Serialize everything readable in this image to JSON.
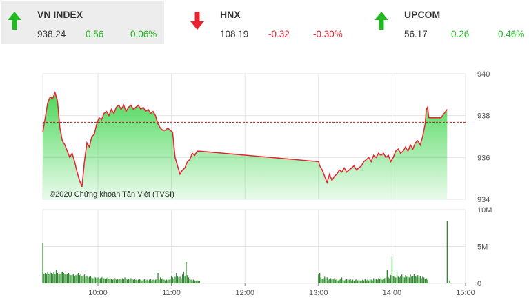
{
  "tickers": [
    {
      "name": "VN INDEX",
      "value": "938.24",
      "change": "0.56",
      "percent": "0.06%",
      "direction": "up",
      "color": "#22b822",
      "active": true
    },
    {
      "name": "HNX",
      "value": "108.19",
      "change": "-0.32",
      "percent": "-0.30%",
      "direction": "down",
      "color": "#e8222e",
      "active": false
    },
    {
      "name": "UPCOM",
      "value": "56.17",
      "change": "0.26",
      "percent": "0.46%",
      "direction": "up",
      "color": "#22b822",
      "active": false
    }
  ],
  "chart_data": {
    "type": "area",
    "copyright": "©2020 Chứng khoán Tân Việt (TVSI)",
    "x_ticks": [
      "10:00",
      "11:00",
      "12:00",
      "13:00",
      "14:00",
      "15:00"
    ],
    "price_ticks": [
      "934",
      "936",
      "938",
      "940"
    ],
    "volume_ticks": [
      "0",
      "5M",
      "10M"
    ],
    "price_range": [
      934,
      940
    ],
    "volume_range": [
      0,
      10
    ],
    "reference_price": 937.68,
    "grid": true,
    "colors": {
      "price_line": "#e8222e",
      "area_fill": "#4cd85a",
      "volume": "#2d8a2d",
      "reference": "#b82020",
      "grid": "#e4e4e4"
    },
    "price_series": [
      [
        "9:15",
        937.2
      ],
      [
        "9:17",
        937.9
      ],
      [
        "9:19",
        938.6
      ],
      [
        "9:21",
        938.9
      ],
      [
        "9:23",
        938.8
      ],
      [
        "9:25",
        939.1
      ],
      [
        "9:27",
        938.7
      ],
      [
        "9:29",
        937.4
      ],
      [
        "9:31",
        936.8
      ],
      [
        "9:33",
        936.6
      ],
      [
        "9:35",
        936.3
      ],
      [
        "9:37",
        936.0
      ],
      [
        "9:39",
        936.2
      ],
      [
        "9:41",
        935.8
      ],
      [
        "9:43",
        935.3
      ],
      [
        "9:45",
        934.9
      ],
      [
        "9:47",
        934.6
      ],
      [
        "9:49",
        935.8
      ],
      [
        "9:51",
        936.7
      ],
      [
        "9:53",
        936.5
      ],
      [
        "9:55",
        937.0
      ],
      [
        "9:57",
        937.1
      ],
      [
        "9:59",
        937.6
      ],
      [
        "10:01",
        937.9
      ],
      [
        "10:03",
        937.8
      ],
      [
        "10:05",
        938.1
      ],
      [
        "10:07",
        938.2
      ],
      [
        "10:09",
        938.0
      ],
      [
        "10:11",
        938.3
      ],
      [
        "10:13",
        938.1
      ],
      [
        "10:15",
        938.4
      ],
      [
        "10:17",
        938.5
      ],
      [
        "10:19",
        938.3
      ],
      [
        "10:21",
        938.5
      ],
      [
        "10:23",
        938.2
      ],
      [
        "10:25",
        938.4
      ],
      [
        "10:27",
        938.5
      ],
      [
        "10:29",
        938.3
      ],
      [
        "10:31",
        938.4
      ],
      [
        "10:33",
        938.5
      ],
      [
        "10:35",
        938.3
      ],
      [
        "10:37",
        938.4
      ],
      [
        "10:39",
        938.2
      ],
      [
        "10:41",
        938.3
      ],
      [
        "10:43",
        938.1
      ],
      [
        "10:45",
        938.2
      ],
      [
        "10:47",
        938.0
      ],
      [
        "10:49",
        937.6
      ],
      [
        "10:51",
        937.4
      ],
      [
        "10:53",
        937.3
      ],
      [
        "10:55",
        937.3
      ],
      [
        "10:57",
        937.4
      ],
      [
        "10:59",
        937.3
      ],
      [
        "11:01",
        937.2
      ],
      [
        "11:03",
        936.0
      ],
      [
        "11:05",
        935.6
      ],
      [
        "11:07",
        935.2
      ],
      [
        "11:09",
        935.4
      ],
      [
        "11:11",
        935.5
      ],
      [
        "11:13",
        935.8
      ],
      [
        "11:15",
        935.9
      ],
      [
        "11:17",
        936.2
      ],
      [
        "11:19",
        936.1
      ],
      [
        "11:21",
        936.3
      ],
      [
        "11:23",
        936.3
      ],
      [
        "13:00",
        935.8
      ],
      [
        "13:01",
        935.6
      ],
      [
        "13:03",
        935.4
      ],
      [
        "13:05",
        935.1
      ],
      [
        "13:07",
        934.8
      ],
      [
        "13:09",
        935.2
      ],
      [
        "13:11",
        934.9
      ],
      [
        "13:13",
        935.1
      ],
      [
        "13:15",
        935.2
      ],
      [
        "13:17",
        935.4
      ],
      [
        "13:19",
        935.3
      ],
      [
        "13:21",
        935.5
      ],
      [
        "13:23",
        935.3
      ],
      [
        "13:25",
        935.4
      ],
      [
        "13:27",
        935.5
      ],
      [
        "13:29",
        935.6
      ],
      [
        "13:31",
        935.4
      ],
      [
        "13:33",
        935.5
      ],
      [
        "13:35",
        935.6
      ],
      [
        "13:37",
        935.8
      ],
      [
        "13:39",
        935.9
      ],
      [
        "13:41",
        936.0
      ],
      [
        "13:43",
        935.8
      ],
      [
        "13:45",
        936.1
      ],
      [
        "13:47",
        936.0
      ],
      [
        "13:49",
        936.2
      ],
      [
        "13:51",
        936.1
      ],
      [
        "13:53",
        936.2
      ],
      [
        "13:55",
        936.0
      ],
      [
        "13:57",
        936.1
      ],
      [
        "13:59",
        935.8
      ],
      [
        "14:01",
        936.0
      ],
      [
        "14:03",
        936.3
      ],
      [
        "14:05",
        936.4
      ],
      [
        "14:07",
        936.2
      ],
      [
        "14:09",
        936.3
      ],
      [
        "14:11",
        936.5
      ],
      [
        "14:13",
        936.3
      ],
      [
        "14:15",
        936.6
      ],
      [
        "14:17",
        936.4
      ],
      [
        "14:19",
        936.7
      ],
      [
        "14:21",
        936.8
      ],
      [
        "14:23",
        936.6
      ],
      [
        "14:25",
        937.0
      ],
      [
        "14:27",
        937.6
      ],
      [
        "14:28",
        938.3
      ],
      [
        "14:29",
        938.4
      ],
      [
        "14:30",
        937.9
      ],
      [
        "14:35",
        937.9
      ],
      [
        "14:40",
        937.9
      ],
      [
        "14:45",
        938.3
      ]
    ],
    "volume_series": [
      [
        "9:15",
        5.5
      ],
      [
        "9:16",
        1.3
      ],
      [
        "9:17",
        1.4
      ],
      [
        "9:18",
        1.2
      ],
      [
        "9:19",
        1.5
      ],
      [
        "9:20",
        1.3
      ],
      [
        "9:21",
        1.6
      ],
      [
        "9:22",
        1.4
      ],
      [
        "9:23",
        1.2
      ],
      [
        "9:24",
        1.5
      ],
      [
        "9:25",
        1.3
      ],
      [
        "9:26",
        1.8
      ],
      [
        "9:27",
        1.4
      ],
      [
        "9:28",
        1.2
      ],
      [
        "9:29",
        1.3
      ],
      [
        "9:30",
        1.5
      ],
      [
        "9:31",
        1.6
      ],
      [
        "9:32",
        1.4
      ],
      [
        "9:33",
        1.3
      ],
      [
        "9:34",
        1.2
      ],
      [
        "9:35",
        1.3
      ],
      [
        "9:36",
        1.4
      ],
      [
        "9:37",
        1.2
      ],
      [
        "9:38",
        1.1
      ],
      [
        "9:39",
        1.2
      ],
      [
        "9:40",
        1.3
      ],
      [
        "9:41",
        1.0
      ],
      [
        "9:42",
        1.1
      ],
      [
        "9:43",
        1.2
      ],
      [
        "9:44",
        1.4
      ],
      [
        "9:45",
        1.1
      ],
      [
        "9:46",
        1.2
      ],
      [
        "9:47",
        1.0
      ],
      [
        "9:48",
        1.1
      ],
      [
        "9:49",
        1.2
      ],
      [
        "9:50",
        0.9
      ],
      [
        "9:51",
        1.0
      ],
      [
        "9:52",
        0.8
      ],
      [
        "9:53",
        0.9
      ],
      [
        "9:54",
        1.0
      ],
      [
        "9:55",
        0.8
      ],
      [
        "9:56",
        0.7
      ],
      [
        "9:57",
        0.9
      ],
      [
        "9:58",
        0.8
      ],
      [
        "9:59",
        0.7
      ],
      [
        "10:00",
        0.8
      ],
      [
        "10:01",
        0.6
      ],
      [
        "10:02",
        0.7
      ],
      [
        "10:03",
        0.8
      ],
      [
        "10:04",
        0.9
      ],
      [
        "10:05",
        0.7
      ],
      [
        "10:06",
        0.6
      ],
      [
        "10:07",
        0.7
      ],
      [
        "10:08",
        0.8
      ],
      [
        "10:09",
        0.6
      ],
      [
        "10:10",
        0.7
      ],
      [
        "10:11",
        0.6
      ],
      [
        "10:12",
        0.5
      ],
      [
        "10:13",
        0.6
      ],
      [
        "10:14",
        0.7
      ],
      [
        "10:15",
        0.5
      ],
      [
        "10:16",
        0.6
      ],
      [
        "10:17",
        0.5
      ],
      [
        "10:18",
        0.6
      ],
      [
        "10:19",
        0.5
      ],
      [
        "10:20",
        0.7
      ],
      [
        "10:21",
        0.6
      ],
      [
        "10:22",
        0.8
      ],
      [
        "10:23",
        0.6
      ],
      [
        "10:24",
        0.5
      ],
      [
        "10:25",
        0.6
      ],
      [
        "10:26",
        0.5
      ],
      [
        "10:27",
        0.7
      ],
      [
        "10:28",
        0.6
      ],
      [
        "10:29",
        0.5
      ],
      [
        "10:30",
        0.6
      ],
      [
        "10:31",
        0.5
      ],
      [
        "10:32",
        0.4
      ],
      [
        "10:33",
        0.5
      ],
      [
        "10:34",
        0.6
      ],
      [
        "10:35",
        0.5
      ],
      [
        "10:36",
        0.4
      ],
      [
        "10:37",
        0.5
      ],
      [
        "10:38",
        0.6
      ],
      [
        "10:39",
        0.4
      ],
      [
        "10:40",
        0.5
      ],
      [
        "10:41",
        0.4
      ],
      [
        "10:42",
        0.5
      ],
      [
        "10:43",
        0.6
      ],
      [
        "10:44",
        0.4
      ],
      [
        "10:45",
        0.5
      ],
      [
        "10:46",
        0.4
      ],
      [
        "10:47",
        0.5
      ],
      [
        "10:48",
        0.6
      ],
      [
        "10:49",
        1.4
      ],
      [
        "10:50",
        0.5
      ],
      [
        "10:51",
        0.8
      ],
      [
        "10:52",
        0.6
      ],
      [
        "10:53",
        0.7
      ],
      [
        "10:54",
        0.5
      ],
      [
        "10:55",
        0.4
      ],
      [
        "10:56",
        0.5
      ],
      [
        "10:57",
        0.4
      ],
      [
        "10:58",
        0.5
      ],
      [
        "10:59",
        0.6
      ],
      [
        "11:00",
        1.0
      ],
      [
        "11:01",
        0.8
      ],
      [
        "11:02",
        0.6
      ],
      [
        "11:03",
        0.9
      ],
      [
        "11:04",
        1.4
      ],
      [
        "11:05",
        1.0
      ],
      [
        "11:06",
        0.8
      ],
      [
        "11:07",
        0.9
      ],
      [
        "11:08",
        0.7
      ],
      [
        "11:09",
        1.2
      ],
      [
        "11:10",
        1.6
      ],
      [
        "11:11",
        1.0
      ],
      [
        "11:12",
        2.9
      ],
      [
        "11:13",
        1.1
      ],
      [
        "11:14",
        0.8
      ],
      [
        "11:15",
        0.6
      ],
      [
        "11:16",
        0.5
      ],
      [
        "11:17",
        0.4
      ],
      [
        "11:18",
        0.5
      ],
      [
        "11:19",
        0.4
      ],
      [
        "11:20",
        0.3
      ],
      [
        "11:21",
        0.4
      ],
      [
        "11:22",
        0.3
      ],
      [
        "11:23",
        0.3
      ],
      [
        "13:00",
        1.2
      ],
      [
        "13:01",
        1.4
      ],
      [
        "13:02",
        0.8
      ],
      [
        "13:03",
        0.6
      ],
      [
        "13:04",
        0.7
      ],
      [
        "13:05",
        0.9
      ],
      [
        "13:06",
        0.6
      ],
      [
        "13:07",
        0.8
      ],
      [
        "13:08",
        0.5
      ],
      [
        "13:09",
        0.6
      ],
      [
        "13:10",
        0.7
      ],
      [
        "13:11",
        0.5
      ],
      [
        "13:12",
        0.6
      ],
      [
        "13:13",
        0.7
      ],
      [
        "13:14",
        0.5
      ],
      [
        "13:15",
        0.6
      ],
      [
        "13:16",
        0.4
      ],
      [
        "13:17",
        0.5
      ],
      [
        "13:18",
        0.6
      ],
      [
        "13:19",
        0.8
      ],
      [
        "13:20",
        0.5
      ],
      [
        "13:21",
        0.4
      ],
      [
        "13:22",
        0.5
      ],
      [
        "13:23",
        0.6
      ],
      [
        "13:24",
        0.4
      ],
      [
        "13:25",
        0.5
      ],
      [
        "13:26",
        0.6
      ],
      [
        "13:27",
        0.4
      ],
      [
        "13:28",
        0.5
      ],
      [
        "13:29",
        0.3
      ],
      [
        "13:30",
        0.5
      ],
      [
        "13:31",
        0.6
      ],
      [
        "13:32",
        0.4
      ],
      [
        "13:33",
        0.5
      ],
      [
        "13:34",
        0.4
      ],
      [
        "13:35",
        0.3
      ],
      [
        "13:36",
        0.5
      ],
      [
        "13:37",
        0.4
      ],
      [
        "13:38",
        0.6
      ],
      [
        "13:39",
        0.4
      ],
      [
        "13:40",
        0.5
      ],
      [
        "13:41",
        0.4
      ],
      [
        "13:42",
        0.6
      ],
      [
        "13:43",
        0.5
      ],
      [
        "13:44",
        0.4
      ],
      [
        "13:45",
        0.7
      ],
      [
        "13:46",
        0.5
      ],
      [
        "13:47",
        0.6
      ],
      [
        "13:48",
        0.5
      ],
      [
        "13:49",
        0.7
      ],
      [
        "13:50",
        0.6
      ],
      [
        "13:51",
        0.8
      ],
      [
        "13:52",
        0.5
      ],
      [
        "13:53",
        0.6
      ],
      [
        "13:54",
        0.7
      ],
      [
        "13:55",
        0.9
      ],
      [
        "13:56",
        1.8
      ],
      [
        "13:57",
        0.8
      ],
      [
        "13:58",
        0.7
      ],
      [
        "13:59",
        1.1
      ],
      [
        "14:00",
        3.6
      ],
      [
        "14:01",
        1.0
      ],
      [
        "14:02",
        0.9
      ],
      [
        "14:03",
        0.8
      ],
      [
        "14:04",
        1.6
      ],
      [
        "14:05",
        0.9
      ],
      [
        "14:06",
        0.8
      ],
      [
        "14:07",
        1.0
      ],
      [
        "14:08",
        1.2
      ],
      [
        "14:09",
        0.9
      ],
      [
        "14:10",
        0.8
      ],
      [
        "14:11",
        1.1
      ],
      [
        "14:12",
        0.9
      ],
      [
        "14:13",
        1.0
      ],
      [
        "14:14",
        0.8
      ],
      [
        "14:15",
        1.2
      ],
      [
        "14:16",
        0.9
      ],
      [
        "14:17",
        1.0
      ],
      [
        "14:18",
        1.3
      ],
      [
        "14:19",
        1.0
      ],
      [
        "14:20",
        0.9
      ],
      [
        "14:21",
        1.1
      ],
      [
        "14:22",
        0.8
      ],
      [
        "14:23",
        1.0
      ],
      [
        "14:24",
        0.7
      ],
      [
        "14:25",
        0.9
      ],
      [
        "14:26",
        0.8
      ],
      [
        "14:27",
        0.6
      ],
      [
        "14:28",
        0.7
      ],
      [
        "14:29",
        0.5
      ],
      [
        "14:45",
        8.5
      ],
      [
        "14:47",
        0.4
      ]
    ]
  }
}
